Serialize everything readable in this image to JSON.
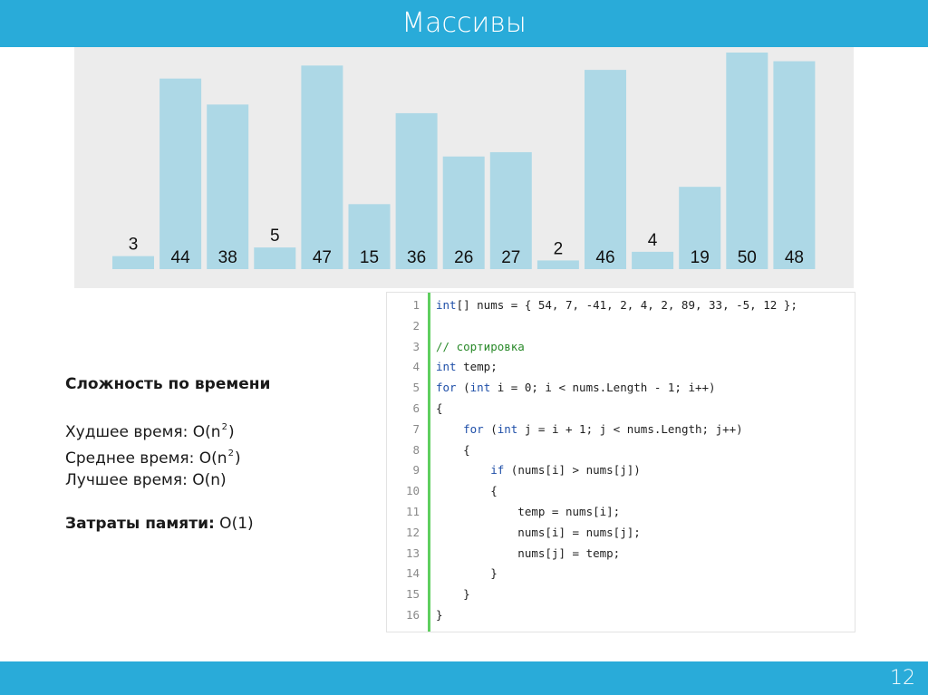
{
  "title": "Массивы",
  "page_number": "12",
  "colors": {
    "accent": "#29abd9",
    "bar": "#add8e6",
    "panel": "#ececec",
    "gutter_line": "#5fcf5f"
  },
  "chart_data": {
    "type": "bar",
    "values": [
      3,
      44,
      38,
      5,
      47,
      15,
      36,
      26,
      27,
      2,
      46,
      4,
      19,
      50,
      48
    ],
    "labels": [
      "3",
      "44",
      "38",
      "5",
      "47",
      "15",
      "36",
      "26",
      "27",
      "2",
      "46",
      "4",
      "19",
      "50",
      "48"
    ],
    "ylim": [
      0,
      50
    ]
  },
  "complexity": {
    "heading": "Сложность по времени",
    "worst_prefix": "Худшее время: O(n",
    "worst_exp": "2",
    "worst_suffix": ")",
    "avg_prefix": "Среднее время: O(n",
    "avg_exp": "2",
    "avg_suffix": ")",
    "best": "Лучшее время: O(n)",
    "memory_label": "Затраты памяти:",
    "memory_value": " O(1)"
  },
  "code": [
    {
      "num": "1",
      "segments": [
        {
          "t": "kw",
          "v": "int"
        },
        {
          "t": "p",
          "v": "[] nums = { 54, 7, -41, 2, 4, 2, 89, 33, -5, 12 };"
        }
      ]
    },
    {
      "num": "2",
      "segments": []
    },
    {
      "num": "3",
      "segments": [
        {
          "t": "cm",
          "v": "// сортировка"
        }
      ]
    },
    {
      "num": "4",
      "segments": [
        {
          "t": "kw",
          "v": "int"
        },
        {
          "t": "p",
          "v": " temp;"
        }
      ]
    },
    {
      "num": "5",
      "segments": [
        {
          "t": "kw",
          "v": "for"
        },
        {
          "t": "p",
          "v": " ("
        },
        {
          "t": "kw",
          "v": "int"
        },
        {
          "t": "p",
          "v": " i = 0; i < nums.Length - 1; i++)"
        }
      ]
    },
    {
      "num": "6",
      "segments": [
        {
          "t": "p",
          "v": "{"
        }
      ]
    },
    {
      "num": "7",
      "segments": [
        {
          "t": "p",
          "v": "    "
        },
        {
          "t": "kw",
          "v": "for"
        },
        {
          "t": "p",
          "v": " ("
        },
        {
          "t": "kw",
          "v": "int"
        },
        {
          "t": "p",
          "v": " j = i + 1; j < nums.Length; j++)"
        }
      ]
    },
    {
      "num": "8",
      "segments": [
        {
          "t": "p",
          "v": "    {"
        }
      ]
    },
    {
      "num": "9",
      "segments": [
        {
          "t": "p",
          "v": "        "
        },
        {
          "t": "kw",
          "v": "if"
        },
        {
          "t": "p",
          "v": " (nums[i] > nums[j])"
        }
      ]
    },
    {
      "num": "10",
      "segments": [
        {
          "t": "p",
          "v": "        {"
        }
      ]
    },
    {
      "num": "11",
      "segments": [
        {
          "t": "p",
          "v": "            temp = nums[i];"
        }
      ]
    },
    {
      "num": "12",
      "segments": [
        {
          "t": "p",
          "v": "            nums[i] = nums[j];"
        }
      ]
    },
    {
      "num": "13",
      "segments": [
        {
          "t": "p",
          "v": "            nums[j] = temp;"
        }
      ]
    },
    {
      "num": "14",
      "segments": [
        {
          "t": "p",
          "v": "        }"
        }
      ]
    },
    {
      "num": "15",
      "segments": [
        {
          "t": "p",
          "v": "    }"
        }
      ]
    },
    {
      "num": "16",
      "segments": [
        {
          "t": "p",
          "v": "}"
        }
      ]
    }
  ]
}
